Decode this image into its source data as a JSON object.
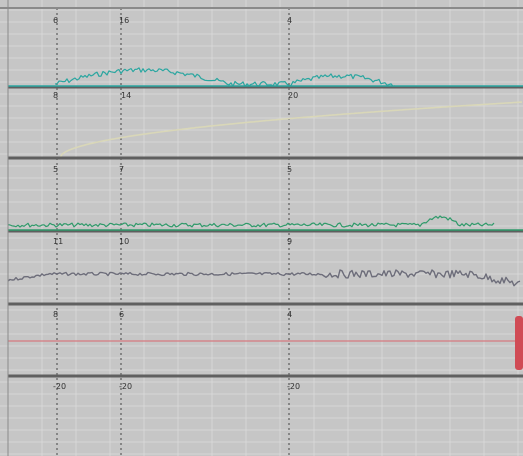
{
  "colors": {
    "background": "#c6c6c6",
    "grid": "#d7d7d7",
    "rule": "#5f5f5f",
    "teal": "#2aa6a0",
    "yellow": "#d9d7b8",
    "green": "#2f9a6a",
    "gray": "#6d6d7a",
    "red": "#d67a80",
    "red_marker": "#d04b55"
  },
  "marker_labels": [
    {
      "id": "l1a",
      "text": "6"
    },
    {
      "id": "l1b",
      "text": "16"
    },
    {
      "id": "l1c",
      "text": "4"
    },
    {
      "id": "l2a",
      "text": "8"
    },
    {
      "id": "l2b",
      "text": "14"
    },
    {
      "id": "l2c",
      "text": "20"
    },
    {
      "id": "l3a",
      "text": "5"
    },
    {
      "id": "l3b",
      "text": "7"
    },
    {
      "id": "l3c",
      "text": "5"
    },
    {
      "id": "l4a",
      "text": "11"
    },
    {
      "id": "l4b",
      "text": "10"
    },
    {
      "id": "l4c",
      "text": "9"
    },
    {
      "id": "l5a",
      "text": "8"
    },
    {
      "id": "l5b",
      "text": "6"
    },
    {
      "id": "l5c",
      "text": "4"
    },
    {
      "id": "l6a",
      "text": "-20"
    },
    {
      "id": "l6b",
      "text": "-20"
    },
    {
      "id": "l6c",
      "text": "-20"
    }
  ]
}
